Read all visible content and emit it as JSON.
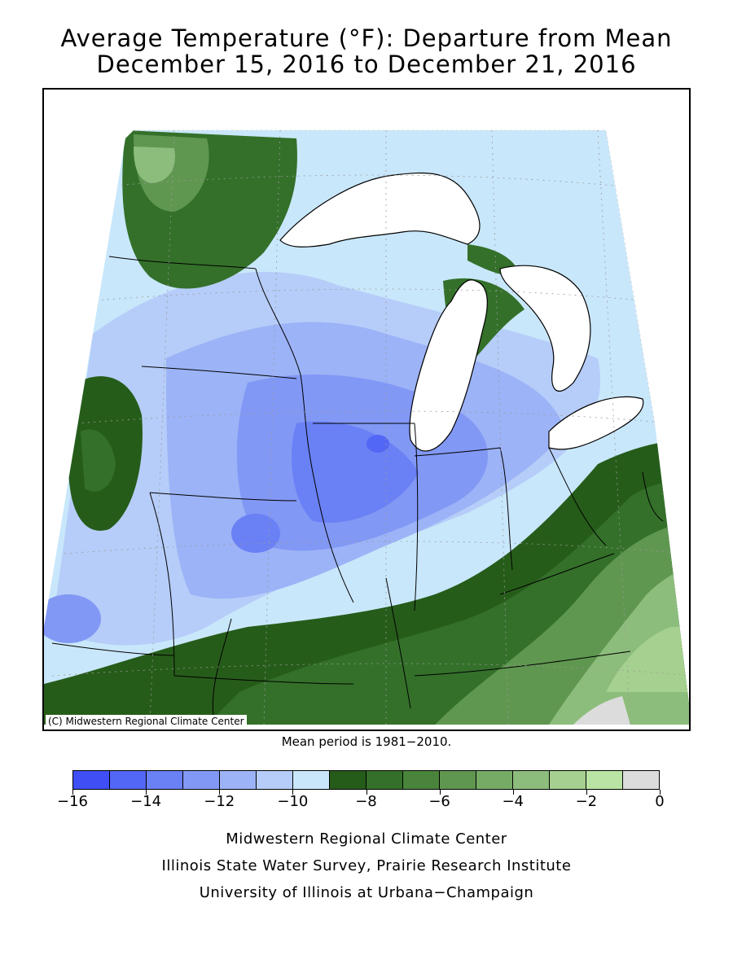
{
  "title": {
    "line1": "Average Temperature (°F): Departure from Mean",
    "line2": "December 15, 2016 to December 21, 2016"
  },
  "map": {
    "copyright": "(C) Midwestern Regional Climate Center",
    "colors": {
      "neg16_15": "#3f4ff5",
      "neg15_14": "#5267f5",
      "neg14_13": "#6a80f5",
      "neg13_12": "#8298f5",
      "neg12_11": "#9cb3f7",
      "neg11_10": "#b6cdf9",
      "neg10_9": "#c9e7fb",
      "neg9_8": "#265c1a",
      "neg8_7": "#34702a",
      "neg7_6": "#4a843c",
      "neg6_5": "#5f9750",
      "neg5_4": "#76ab66",
      "neg4_3": "#8dbd7c",
      "neg3_2": "#a6d08f",
      "neg2_1": "#b9e4a3",
      "neg1_0": "#dcdcdc",
      "land_outline": "#000000",
      "lake": "#ffffff"
    }
  },
  "mean_period": "Mean period is 1981−2010.",
  "legend": {
    "colors": [
      "#3f4ff5",
      "#5267f5",
      "#6a80f5",
      "#8298f5",
      "#9cb3f7",
      "#b6cdf9",
      "#c9e7fb",
      "#265c1a",
      "#34702a",
      "#4a843c",
      "#5f9750",
      "#76ab66",
      "#8dbd7c",
      "#a6d08f",
      "#b9e4a3",
      "#dcdcdc"
    ],
    "labels": [
      "−16",
      "−14",
      "−12",
      "−10",
      "−8",
      "−6",
      "−4",
      "−2",
      "0"
    ]
  },
  "credits": {
    "line1": "Midwestern Regional Climate Center",
    "line2": "Illinois State Water Survey, Prairie Research Institute",
    "line3": "University of Illinois at Urbana−Champaign"
  }
}
